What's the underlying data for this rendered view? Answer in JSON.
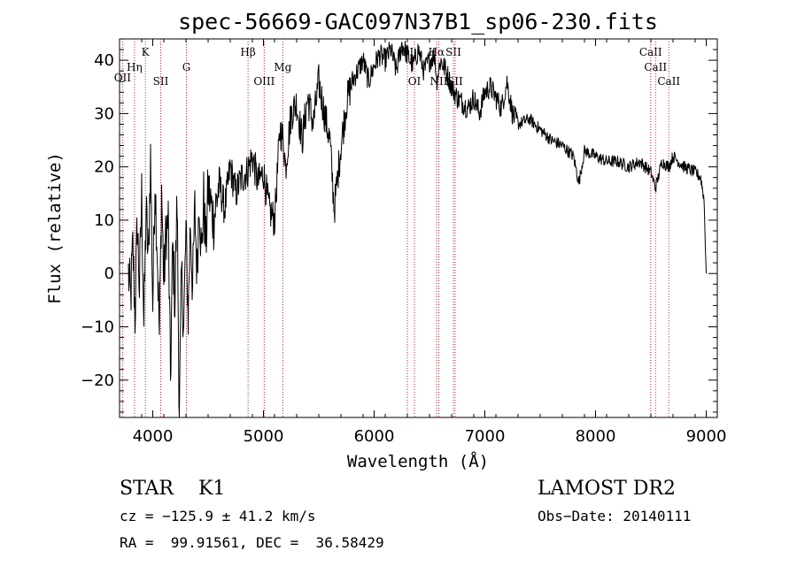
{
  "chart_data": {
    "type": "line",
    "title": "spec-56669-GAC097N37B1_sp06-230.fits",
    "xlabel": "Wavelength (Å)",
    "ylabel": "Flux (relative)",
    "xlim": [
      3700,
      9100
    ],
    "ylim": [
      -27,
      44
    ],
    "x_ticks": [
      4000,
      5000,
      6000,
      7000,
      8000,
      9000
    ],
    "y_ticks": [
      -20,
      -10,
      0,
      10,
      20,
      30,
      40
    ],
    "x_tick_labels": [
      "4000",
      "5000",
      "6000",
      "7000",
      "8000",
      "9000"
    ],
    "y_tick_labels": [
      "−20",
      "−10",
      "0",
      "10",
      "20",
      "30",
      "40"
    ],
    "series": [
      {
        "line_color": "#000000",
        "x": [
          3780,
          3800,
          3820,
          3840,
          3860,
          3880,
          3900,
          3920,
          3940,
          3960,
          3980,
          4000,
          4020,
          4040,
          4060,
          4080,
          4100,
          4120,
          4140,
          4160,
          4180,
          4200,
          4220,
          4240,
          4260,
          4280,
          4300,
          4320,
          4340,
          4360,
          4380,
          4400,
          4420,
          4440,
          4460,
          4480,
          4500,
          4550,
          4600,
          4650,
          4700,
          4750,
          4800,
          4850,
          4900,
          4950,
          5000,
          5050,
          5100,
          5150,
          5180,
          5200,
          5250,
          5300,
          5350,
          5400,
          5450,
          5500,
          5550,
          5600,
          5640,
          5660,
          5680,
          5700,
          5750,
          5800,
          5850,
          5900,
          5950,
          6000,
          6050,
          6100,
          6150,
          6200,
          6250,
          6300,
          6350,
          6400,
          6450,
          6500,
          6550,
          6563,
          6600,
          6650,
          6700,
          6750,
          6800,
          6850,
          6900,
          6950,
          7000,
          7050,
          7100,
          7150,
          7200,
          7250,
          7300,
          7400,
          7500,
          7600,
          7700,
          7800,
          7850,
          7900,
          8000,
          8100,
          8200,
          8300,
          8400,
          8500,
          8542,
          8600,
          8662,
          8700,
          8800,
          8900,
          8950,
          8980,
          9000
        ],
        "y": [
          0,
          -5,
          5,
          -8,
          10,
          -3,
          15,
          -10,
          12,
          2,
          22,
          -6,
          18,
          5,
          -12,
          16,
          -2,
          8,
          10,
          -20,
          5,
          -5,
          14,
          -27,
          0,
          -10,
          8,
          -8,
          10,
          -3,
          12,
          0,
          15,
          3,
          14,
          5,
          16,
          10,
          17,
          12,
          20,
          15,
          18,
          19,
          22,
          17,
          19,
          12,
          10,
          27,
          25,
          20,
          30,
          32,
          25,
          33,
          28,
          36,
          30,
          25,
          12,
          16,
          20,
          24,
          32,
          36,
          38,
          40,
          36,
          39,
          41,
          40,
          42,
          38,
          43,
          41,
          39,
          42,
          38,
          40,
          41,
          36,
          40,
          38,
          35,
          33,
          32,
          31,
          33,
          30,
          34,
          35,
          33,
          31,
          36,
          30,
          28,
          29,
          27,
          25,
          24,
          22,
          17,
          23,
          22,
          21,
          21,
          20,
          21,
          19,
          16,
          21,
          20,
          22,
          20,
          19,
          18,
          14,
          0
        ]
      }
    ],
    "spectral_lines": [
      {
        "name": "OII",
        "x": 3727,
        "label_y": 88
      },
      {
        "name": "Hη",
        "x": 3835,
        "label_y": 76
      },
      {
        "name": "K",
        "x": 3934,
        "label_y": 59
      },
      {
        "name": "SII",
        "x": 4072,
        "label_y": 92
      },
      {
        "name": "G",
        "x": 4304,
        "label_y": 76
      },
      {
        "name": "Hβ",
        "x": 4861,
        "label_y": 59
      },
      {
        "name": "OIII",
        "x": 5007,
        "label_y": 92
      },
      {
        "name": "Mg",
        "x": 5175,
        "label_y": 76
      },
      {
        "name": "OI",
        "x": 6300,
        "label_y": 59
      },
      {
        "name": "OI",
        "x": 6364,
        "label_y": 92
      },
      {
        "name": "Hα",
        "x": 6563,
        "label_y": 59
      },
      {
        "name": "NII",
        "x": 6584,
        "label_y": 92
      },
      {
        "name": "SII",
        "x": 6716,
        "label_y": 59
      },
      {
        "name": "SII",
        "x": 6731,
        "label_y": 92
      },
      {
        "name": "CaII",
        "x": 8498,
        "label_y": 59
      },
      {
        "name": "CaII",
        "x": 8542,
        "label_y": 76
      },
      {
        "name": "CaII",
        "x": 8662,
        "label_y": 92
      }
    ],
    "line_marker_color": "#cc2222"
  },
  "info": {
    "classification": "STAR    K1",
    "survey": "LAMOST DR2",
    "cz": "cz = −125.9 ± 41.2 km/s",
    "obs_date": "Obs−Date: 20140111",
    "coords": "RA =  99.91561, DEC =  36.58429"
  }
}
